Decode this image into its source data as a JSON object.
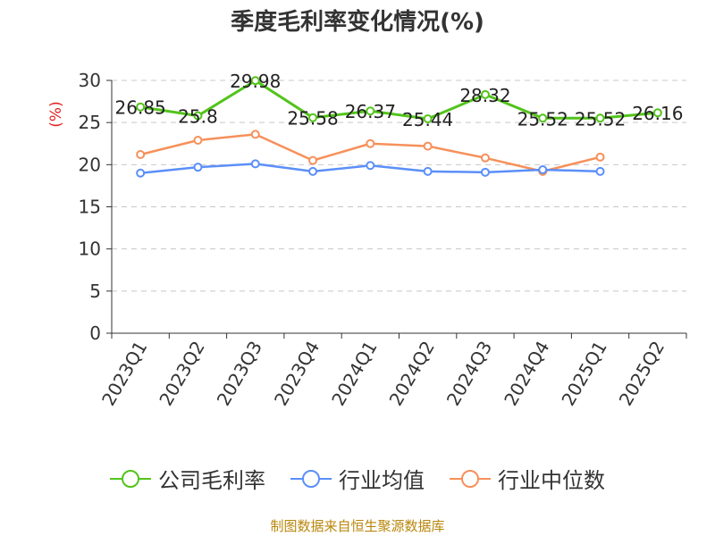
{
  "title": "季度毛利率变化情况(%)",
  "source": "制图数据来自恒生聚源数据库",
  "chart_data": {
    "type": "line",
    "categories": [
      "2023Q1",
      "2023Q2",
      "2023Q3",
      "2023Q4",
      "2024Q1",
      "2024Q2",
      "2024Q3",
      "2024Q4",
      "2025Q1",
      "2025Q2"
    ],
    "ylabel": "(%)",
    "ylim": [
      0,
      30
    ],
    "yticks": [
      0,
      5,
      10,
      15,
      20,
      25,
      30
    ],
    "grid": true,
    "legend_position": "bottom",
    "series": [
      {
        "name": "公司毛利率",
        "color": "#52c41a",
        "values": [
          26.85,
          25.8,
          29.98,
          25.58,
          26.37,
          25.44,
          28.32,
          25.52,
          25.52,
          26.16
        ],
        "labels": [
          "26.85",
          "25.8",
          "29.98",
          "25.58",
          "26.37",
          "25.44",
          "28.32",
          "25.52",
          "25.52",
          "26.16"
        ]
      },
      {
        "name": "行业均值",
        "color": "#5b8ff9",
        "values": [
          19.0,
          19.7,
          20.1,
          19.2,
          19.9,
          19.2,
          19.1,
          19.4,
          19.2,
          null
        ]
      },
      {
        "name": "行业中位数",
        "color": "#f6905a",
        "values": [
          21.2,
          22.9,
          23.6,
          20.5,
          22.5,
          22.2,
          20.8,
          19.2,
          20.9,
          null
        ]
      }
    ]
  }
}
